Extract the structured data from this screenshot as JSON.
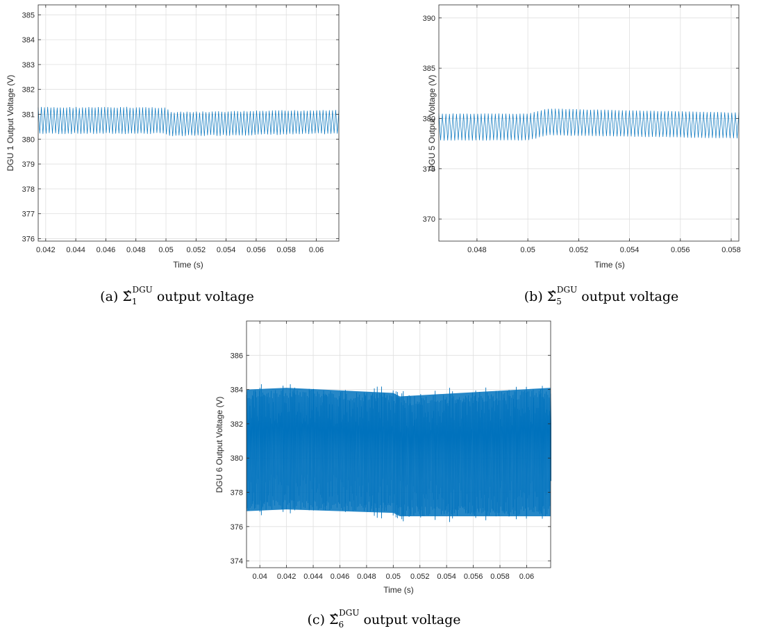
{
  "colors": {
    "series": "#0072BD",
    "grid": "#DFDFDF",
    "axis": "#262626",
    "background": "#FFFFFF"
  },
  "chart_data": [
    {
      "type": "line",
      "xlabel": "Time (s)",
      "ylabel": "DGU 1 Output Voltage (V)",
      "xlim": [
        0.0415,
        0.0615
      ],
      "ylim": [
        375.9,
        385.4
      ],
      "xticks": [
        0.042,
        0.044,
        0.046,
        0.048,
        0.05,
        0.052,
        0.054,
        0.056,
        0.058,
        0.06
      ],
      "xtick_labels": [
        "0.042",
        "0.044",
        "0.046",
        "0.048",
        "0.05",
        "0.052",
        "0.054",
        "0.056",
        "0.058",
        "0.06"
      ],
      "yticks": [
        376,
        377,
        378,
        379,
        380,
        381,
        382,
        383,
        384,
        385
      ],
      "ytick_labels": [
        "376",
        "377",
        "378",
        "379",
        "380",
        "381",
        "382",
        "383",
        "384",
        "385"
      ],
      "grid": true,
      "series": [
        {
          "envelope": {
            "x": [
              0.0415,
              0.05,
              0.0503,
              0.0615
            ],
            "upper": [
              381.3,
              381.3,
              381.1,
              381.2
            ],
            "lower": [
              380.2,
              380.2,
              380.1,
              380.2
            ]
          }
        }
      ],
      "caption": {
        "label": "(a)",
        "symbol": "Σ̂",
        "superscript": "DGU",
        "subscript": "1",
        "text": "output voltage"
      }
    },
    {
      "type": "line",
      "xlabel": "Time (s)",
      "ylabel": "DGU 5 Output Voltage (V)",
      "xlim": [
        0.0465,
        0.0583
      ],
      "ylim": [
        367.8,
        391.3
      ],
      "xticks": [
        0.048,
        0.05,
        0.052,
        0.054,
        0.056,
        0.058
      ],
      "xtick_labels": [
        "0.048",
        "0.05",
        "0.052",
        "0.054",
        "0.056",
        "0.058"
      ],
      "yticks": [
        370,
        375,
        380,
        385,
        390
      ],
      "ytick_labels": [
        "370",
        "375",
        "380",
        "385",
        "390"
      ],
      "grid": true,
      "series": [
        {
          "envelope": {
            "x": [
              0.0465,
              0.05,
              0.0508,
              0.0583
            ],
            "upper": [
              380.5,
              380.5,
              381.0,
              380.6
            ],
            "lower": [
              377.8,
              377.8,
              378.3,
              378.0
            ]
          }
        }
      ],
      "caption": {
        "label": "(b)",
        "symbol": "Σ̂",
        "superscript": "DGU",
        "subscript": "5",
        "text": "output voltage"
      }
    },
    {
      "type": "line",
      "xlabel": "Time (s)",
      "ylabel": "DGU 6 Output Voltage (V)",
      "xlim": [
        0.039,
        0.0618
      ],
      "ylim": [
        373.6,
        388.0
      ],
      "xticks": [
        0.04,
        0.042,
        0.044,
        0.046,
        0.048,
        0.05,
        0.052,
        0.054,
        0.056,
        0.058,
        0.06
      ],
      "xtick_labels": [
        "0.04",
        "0.042",
        "0.044",
        "0.046",
        "0.048",
        "0.05",
        "0.052",
        "0.054",
        "0.056",
        "0.058",
        "0.06"
      ],
      "yticks": [
        374,
        376,
        378,
        380,
        382,
        384,
        386
      ],
      "ytick_labels": [
        "374",
        "376",
        "378",
        "380",
        "382",
        "384",
        "386"
      ],
      "grid": true,
      "series": [
        {
          "envelope": {
            "x": [
              0.039,
              0.042,
              0.05,
              0.0505,
              0.0618
            ],
            "upper": [
              384.0,
              384.1,
              383.8,
              383.6,
              384.1
            ],
            "lower": [
              376.9,
              377.0,
              376.8,
              376.6,
              376.6
            ]
          }
        }
      ],
      "caption": {
        "label": "(c)",
        "symbol": "Σ̂",
        "superscript": "DGU",
        "subscript": "6",
        "text": "output voltage"
      }
    }
  ]
}
